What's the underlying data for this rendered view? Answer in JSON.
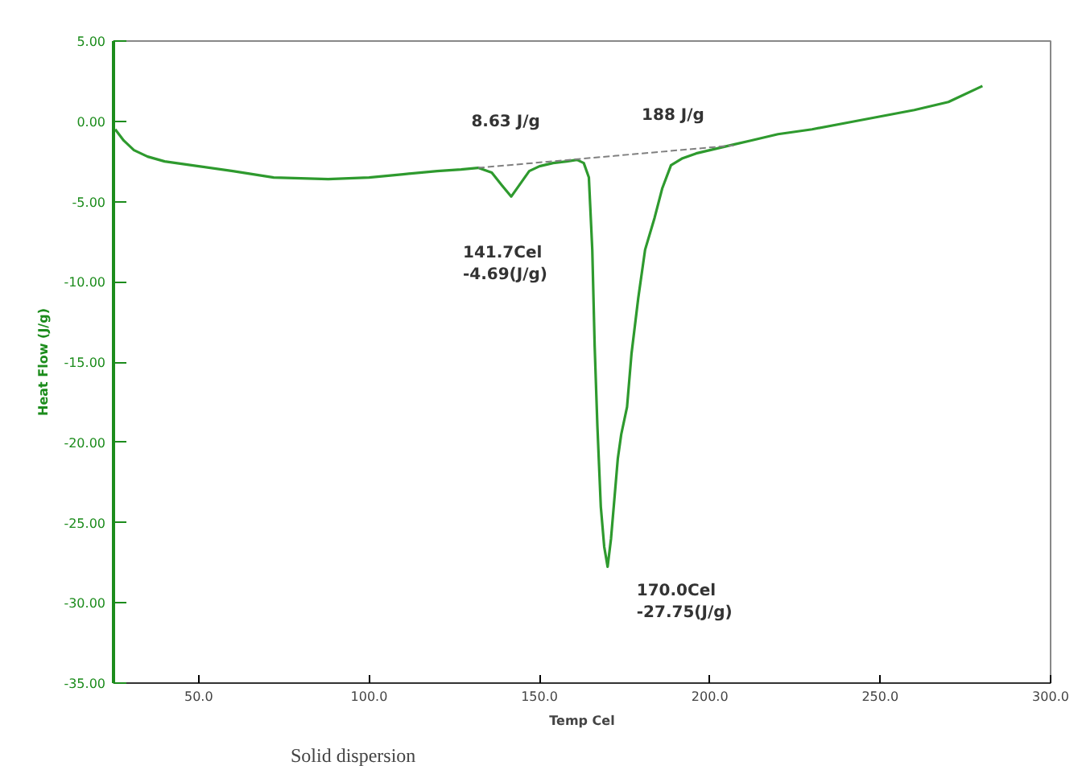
{
  "chart_data": {
    "type": "line",
    "xlabel": "Temp Cel",
    "ylabel": "Heat Flow (J/g)",
    "xlim": [
      25,
      300
    ],
    "ylim": [
      -35,
      5
    ],
    "xticks": [
      {
        "value": 50,
        "label": "50.0"
      },
      {
        "value": 100,
        "label": "100.0"
      },
      {
        "value": 150,
        "label": "150.0"
      },
      {
        "value": 200,
        "label": "200.0"
      },
      {
        "value": 250,
        "label": "250.0"
      },
      {
        "value": 300,
        "label": "300.0"
      }
    ],
    "yticks": [
      {
        "value": 5,
        "label": "5.00"
      },
      {
        "value": 0,
        "label": "0.00"
      },
      {
        "value": -5,
        "label": "-5.00"
      },
      {
        "value": -10,
        "label": "-10.00"
      },
      {
        "value": -15,
        "label": "-15.00"
      },
      {
        "value": -20,
        "label": "-20.00"
      },
      {
        "value": -25,
        "label": "-25.00"
      },
      {
        "value": -30,
        "label": "-30.00"
      },
      {
        "value": -35,
        "label": "-35.00"
      }
    ],
    "grid": false,
    "series": [
      {
        "color": "#2e9a2e",
        "line_style": "solid",
        "x": [
          25.5,
          28,
          31,
          35,
          40,
          50,
          60,
          72,
          88,
          100,
          110,
          120,
          127,
          132,
          136,
          139,
          141.7,
          144,
          147,
          150,
          154,
          158,
          161,
          163,
          164.5,
          165.5,
          166.2,
          167,
          168,
          169,
          170,
          171,
          172,
          173,
          174,
          175.7,
          177,
          179,
          181,
          183.8,
          186,
          188.6,
          192,
          196,
          200,
          204,
          207,
          212,
          220,
          230,
          240,
          250,
          260,
          270,
          280
        ],
        "values": [
          -0.5,
          -1.2,
          -1.8,
          -2.2,
          -2.5,
          -2.8,
          -3.1,
          -3.5,
          -3.6,
          -3.5,
          -3.3,
          -3.1,
          -3,
          -2.9,
          -3.2,
          -4,
          -4.69,
          -4,
          -3.1,
          -2.8,
          -2.6,
          -2.5,
          -2.4,
          -2.6,
          -3.5,
          -8,
          -14,
          -19,
          -24,
          -26.5,
          -27.75,
          -26,
          -23.5,
          -21,
          -19.5,
          -17.8,
          -14.5,
          -11,
          -8,
          -6,
          -4.2,
          -2.74,
          -2.3,
          -2,
          -1.8,
          -1.6,
          -1.45,
          -1.2,
          -0.8,
          -0.5,
          -0.1,
          0.3,
          0.7,
          1.2,
          2.2
        ]
      },
      {
        "color": "#808080",
        "line_style": "dashed",
        "x": [
          132,
          207
        ],
        "values": [
          -2.9,
          -1.5
        ]
      }
    ],
    "annotations": [
      "8.63 J/g",
      "188 J/g",
      {
        "text": "141.7Cel\n-4.69(J/g)",
        "x": 141.7,
        "y": -4.69
      },
      {
        "text": "170.0Cel\n-27.75(J/g)",
        "x": 170,
        "y": -27.75
      },
      "Solid dispersion"
    ]
  }
}
